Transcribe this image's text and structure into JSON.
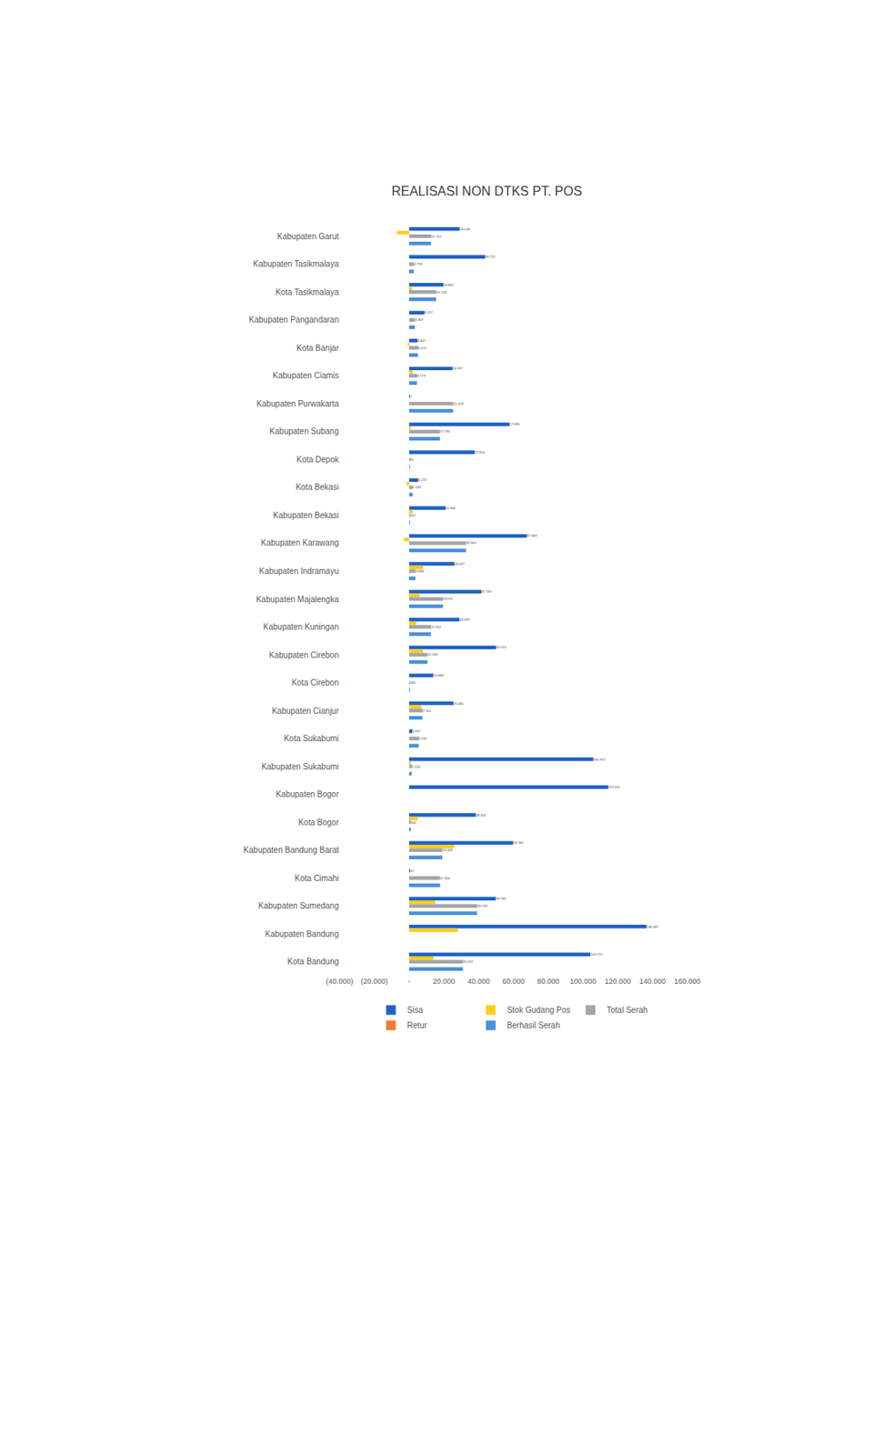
{
  "chart_data": {
    "type": "bar",
    "orientation": "horizontal",
    "title": "REALISASI NON DTKS PT. POS",
    "categories": [
      "Kabupaten Garut",
      "Kabupaten Tasikmalaya",
      "Kota Tasikmalaya",
      "Kabupaten Pangandaran",
      "Kota Banjar",
      "Kabupaten Ciamis",
      "Kabupaten Purwakarta",
      "Kabupaten Subang",
      "Kota Depok",
      "Kota Bekasi",
      "Kabupaten Bekasi",
      "Kabupaten Karawang",
      "Kabupaten Indramayu",
      "Kabupaten Majalengka",
      "Kabupaten Kuningan",
      "Kabupaten Cirebon",
      "Kota Cirebon",
      "Kabupaten Cianjur",
      "Kota Sukabumi",
      "Kabupaten Sukabumi",
      "Kabupaten Bogor",
      "Kota Bogor",
      "Kabupaten Bandung Barat",
      "Kota Cimahi",
      "Kabupaten Sumedang",
      "Kabupaten Bandung",
      "Kota Bandung"
    ],
    "series": [
      {
        "name": "Sisa",
        "color": "#1f63c6",
        "data_labels": true,
        "values": [
          29039,
          43722,
          19685,
          8727,
          4847,
          24937,
          7,
          57690,
          37650,
          5272,
          20942,
          67669,
          26027,
          41544,
          28937,
          50010,
          13849,
          25465,
          1837,
          105912,
          114505,
          38319,
          59780,
          37,
          49760,
          136487,
          104172
        ],
        "value_labels": [
          "29.039",
          "43.722",
          "19.685",
          "8.727",
          "4.847",
          "24.937",
          "7",
          "57.690",
          "37.650",
          "5.272",
          "20.942",
          "67.669",
          "26.027",
          "41.544",
          "28.937",
          "50.010",
          "13.849",
          "25.465",
          "1.837",
          "105.912",
          "114.505",
          "38.319",
          "59.780",
          "37",
          "49.760",
          "136.487",
          "104.172"
        ]
      },
      {
        "name": "Stok Gudang Pos",
        "color": "#ffcc1a",
        "data_labels": false,
        "values": [
          -7000,
          0,
          1500,
          0,
          -1000,
          2000,
          0,
          1000,
          0,
          -1500,
          2000,
          -3000,
          8000,
          6000,
          4000,
          8000,
          0,
          7000,
          0,
          1000,
          0,
          5000,
          26000,
          0,
          15000,
          28000,
          14000
        ]
      },
      {
        "name": "Total Serah",
        "color": "#a5a5a5",
        "data_labels": true,
        "values": [
          12712,
          2759,
          15558,
          3367,
          5212,
          4574,
          25329,
          17730,
          85,
          2028,
          422,
          32805,
          3686,
          19511,
          12552,
          10569,
          282,
          7765,
          5532,
          1554,
          0,
          902,
          19083,
          17805,
          39160,
          0,
          31007
        ],
        "value_labels": [
          "12.712",
          "2.759",
          "15.558",
          "3.367",
          "5.212",
          "4.574",
          "25.329",
          "17.730",
          "85",
          "2.028",
          "422",
          "32.805",
          "3.686",
          "19.511",
          "12.552",
          "10.569",
          "282",
          "7.765",
          "5.532",
          "1.554",
          "-",
          "902",
          "19.083",
          "17.805",
          "39.160",
          "-",
          "31.007"
        ]
      },
      {
        "name": "Retur",
        "color": "#ed7d31",
        "data_labels": false,
        "values": [
          0,
          0,
          0,
          0,
          0,
          0,
          0,
          0,
          0,
          0,
          0,
          0,
          0,
          0,
          0,
          0,
          0,
          0,
          0,
          0,
          0,
          0,
          0,
          0,
          0,
          0,
          0
        ]
      },
      {
        "name": "Berhasil Serah",
        "color": "#4a90d9",
        "data_labels": false,
        "values": [
          12500,
          2700,
          15500,
          3300,
          5000,
          4500,
          25300,
          17700,
          85,
          2000,
          400,
          32700,
          3600,
          19400,
          12500,
          10500,
          280,
          7700,
          5500,
          1500,
          0,
          900,
          19000,
          17800,
          39000,
          0,
          30900
        ]
      }
    ],
    "xlim": [
      -40000,
      160000
    ],
    "xticks": [
      {
        "value": -40000,
        "label": "(40.000)"
      },
      {
        "value": -20000,
        "label": "(20.000)"
      },
      {
        "value": 0,
        "label": "-"
      },
      {
        "value": 20000,
        "label": "20.000"
      },
      {
        "value": 40000,
        "label": "40.000"
      },
      {
        "value": 60000,
        "label": "60.000"
      },
      {
        "value": 80000,
        "label": "80.000"
      },
      {
        "value": 100000,
        "label": "100.000"
      },
      {
        "value": 120000,
        "label": "120.000"
      },
      {
        "value": 140000,
        "label": "140.000"
      },
      {
        "value": 160000,
        "label": "160.000"
      }
    ],
    "grid": false,
    "legend": "bottom"
  }
}
